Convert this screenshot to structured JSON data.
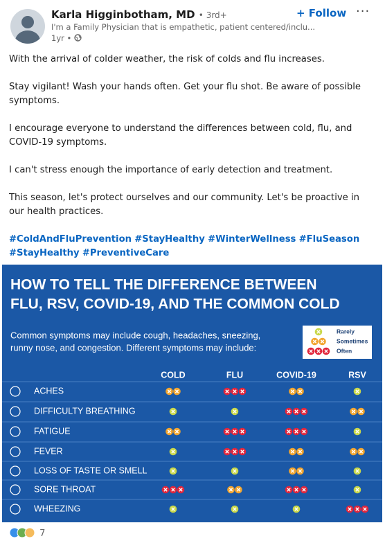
{
  "author": {
    "name": "Karla Higginbotham, MD",
    "degree": "• 3rd+",
    "headline": "I'm a Family Physician that is empathetic, patient centered/inclu...",
    "time": "1yr •"
  },
  "follow": "+ Follow",
  "paragraphs": [
    "With the arrival of colder weather, the risk of colds and flu increases.",
    "Stay vigilant! Wash your hands often. Get your flu shot. Be aware of possible symptoms.",
    "I encourage everyone to understand the differences between cold, flu, and COVID-19 symptoms.",
    "I can't stress enough the importance of early detection and treatment.",
    "This season, let's protect ourselves and our community. Let's be proactive in our health practices."
  ],
  "hashtags": [
    "#ColdAndFluPrevention",
    "#StayHealthy",
    "#WinterWellness",
    "#FluSeason",
    "#StayHealthy",
    "#PreventiveCare"
  ],
  "infographic": {
    "title_lines": [
      "HOW TO TELL THE DIFFERENCE BETWEEN",
      "FLU, RSV, COVID-19, AND THE COMMON COLD"
    ],
    "intro_lines": [
      "Common symptoms may include cough, headaches, sneezing,",
      "runny nose, and congestion. Different symptoms may include:"
    ],
    "legend": [
      {
        "label": "Rarely",
        "count": 1
      },
      {
        "label": "Sometimes",
        "count": 2
      },
      {
        "label": "Often",
        "count": 3
      }
    ],
    "columns": [
      "COLD",
      "FLU",
      "COVID-19",
      "RSV"
    ],
    "rows": [
      {
        "label": "ACHES",
        "levels": [
          2,
          3,
          2,
          1
        ]
      },
      {
        "label": "DIFFICULTY BREATHING",
        "levels": [
          1,
          1,
          3,
          2
        ]
      },
      {
        "label": "FATIGUE",
        "levels": [
          2,
          3,
          3,
          1
        ]
      },
      {
        "label": "FEVER",
        "levels": [
          1,
          3,
          2,
          2
        ]
      },
      {
        "label": "LOSS OF TASTE OR SMELL",
        "levels": [
          1,
          1,
          2,
          1
        ]
      },
      {
        "label": "SORE THROAT",
        "levels": [
          3,
          2,
          3,
          1
        ]
      },
      {
        "label": "WHEEZING",
        "levels": [
          1,
          1,
          1,
          3
        ]
      }
    ]
  },
  "reactions": {
    "count": 7
  }
}
